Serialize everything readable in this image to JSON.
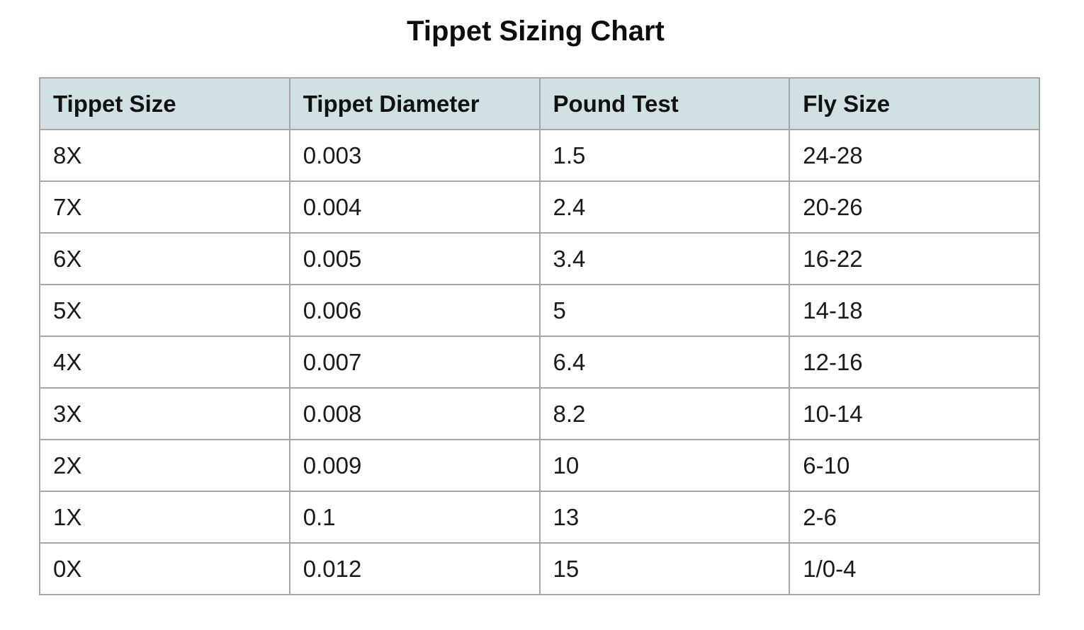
{
  "title": "Tippet Sizing Chart",
  "colors": {
    "header_background": "#d0e0e3",
    "grid_lines": "#a6a6a6"
  },
  "table": {
    "headers": [
      "Tippet Size",
      "Tippet Diameter",
      "Pound Test",
      "Fly Size"
    ],
    "rows": [
      [
        "8X",
        "0.003",
        "1.5",
        "24-28"
      ],
      [
        "7X",
        "0.004",
        "2.4",
        "20-26"
      ],
      [
        "6X",
        "0.005",
        "3.4",
        "16-22"
      ],
      [
        "5X",
        "0.006",
        "5",
        "14-18"
      ],
      [
        "4X",
        "0.007",
        "6.4",
        "12-16"
      ],
      [
        "3X",
        "0.008",
        "8.2",
        "10-14"
      ],
      [
        "2X",
        "0.009",
        "10",
        "6-10"
      ],
      [
        "1X",
        "0.1",
        "13",
        "2-6"
      ],
      [
        "0X",
        "0.012",
        "15",
        "1/0-4"
      ]
    ]
  }
}
